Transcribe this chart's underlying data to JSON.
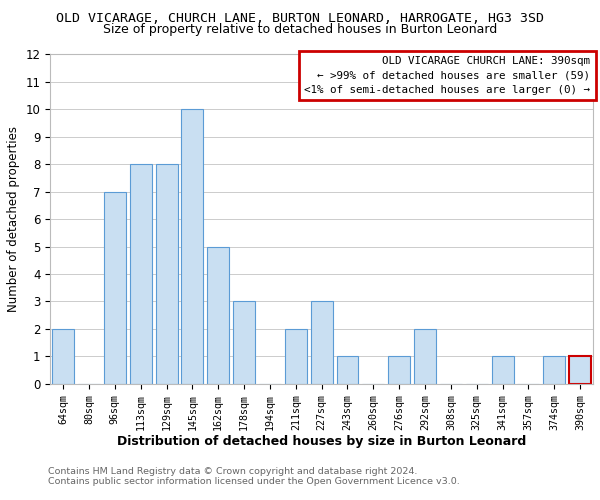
{
  "title": "OLD VICARAGE, CHURCH LANE, BURTON LEONARD, HARROGATE, HG3 3SD",
  "subtitle": "Size of property relative to detached houses in Burton Leonard",
  "xlabel": "Distribution of detached houses by size in Burton Leonard",
  "ylabel": "Number of detached properties",
  "bar_labels": [
    "64sqm",
    "80sqm",
    "96sqm",
    "113sqm",
    "129sqm",
    "145sqm",
    "162sqm",
    "178sqm",
    "194sqm",
    "211sqm",
    "227sqm",
    "243sqm",
    "260sqm",
    "276sqm",
    "292sqm",
    "308sqm",
    "325sqm",
    "341sqm",
    "357sqm",
    "374sqm",
    "390sqm"
  ],
  "bar_values": [
    2,
    0,
    7,
    8,
    8,
    10,
    5,
    3,
    0,
    2,
    3,
    1,
    0,
    1,
    2,
    0,
    0,
    1,
    0,
    1,
    1
  ],
  "bar_color": "#c9dff2",
  "bar_edge_color": "#5b9bd5",
  "highlight_index": 20,
  "highlight_edge_color": "#cc0000",
  "ylim": [
    0,
    12
  ],
  "yticks": [
    0,
    1,
    2,
    3,
    4,
    5,
    6,
    7,
    8,
    9,
    10,
    11,
    12
  ],
  "legend_title": "OLD VICARAGE CHURCH LANE: 390sqm",
  "legend_line1": "← >99% of detached houses are smaller (59)",
  "legend_line2": "<1% of semi-detached houses are larger (0) →",
  "footer_line1": "Contains HM Land Registry data © Crown copyright and database right 2024.",
  "footer_line2": "Contains public sector information licensed under the Open Government Licence v3.0.",
  "background_color": "#ffffff",
  "grid_color": "#cccccc"
}
